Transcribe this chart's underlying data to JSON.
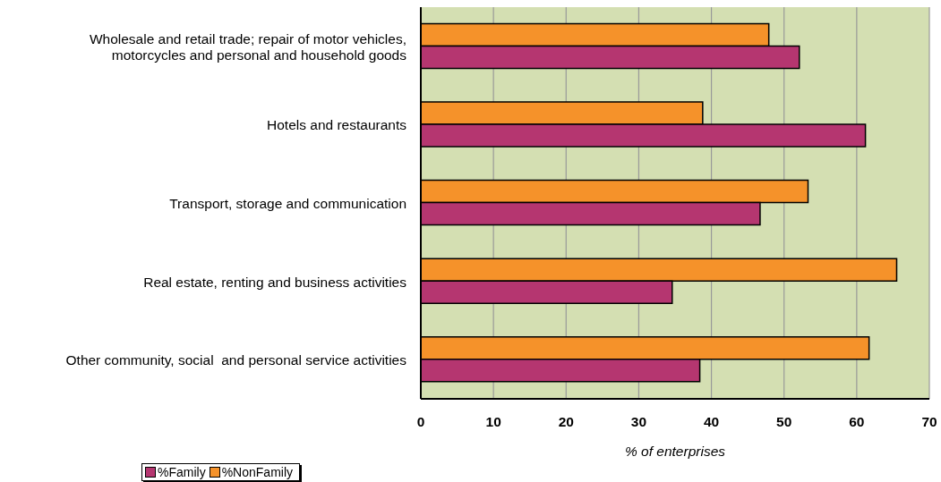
{
  "chart_data": {
    "type": "bar",
    "orientation": "horizontal",
    "xlabel": "% of enterprises",
    "categories": [
      "Wholesale and retail trade; repair of motor vehicles, motorcycles and personal and household goods",
      "Hotels and restaurants",
      "Transport, storage and communication",
      "Real estate, renting and business activities",
      "Other community, social  and personal service activities"
    ],
    "series": [
      {
        "name": "%Family",
        "color": "#b53670",
        "values": [
          52.1,
          61.2,
          46.7,
          34.6,
          38.4
        ]
      },
      {
        "name": "%NonFamily",
        "color": "#f5922a",
        "values": [
          47.9,
          38.8,
          53.3,
          65.5,
          61.7
        ]
      }
    ],
    "xlim": [
      0,
      70
    ],
    "xticks": [
      0,
      10,
      20,
      30,
      40,
      50,
      60,
      70
    ],
    "grid": "x",
    "legend": "bottom left"
  }
}
